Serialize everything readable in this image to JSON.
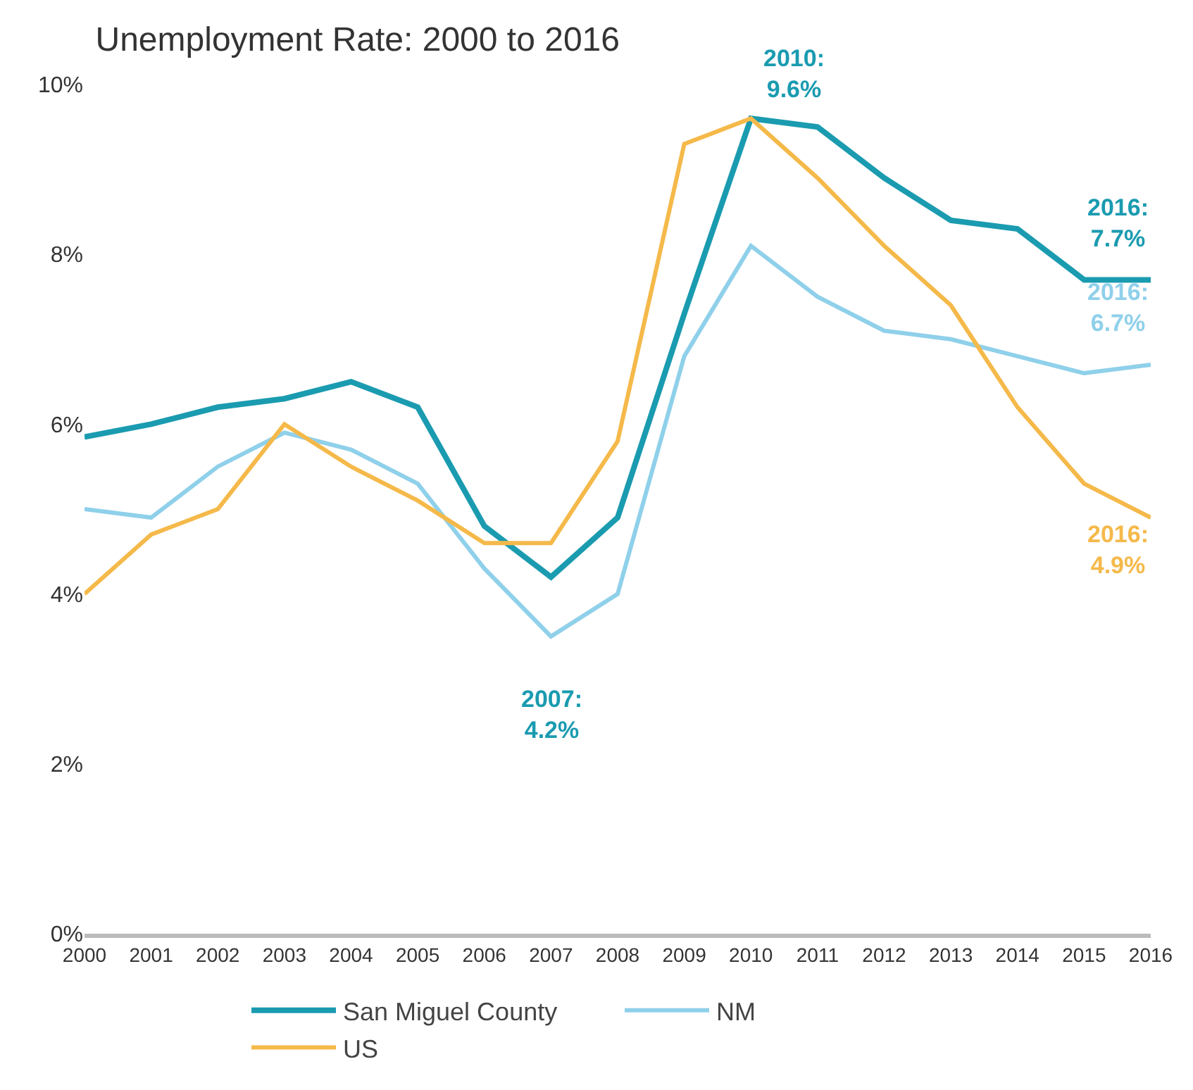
{
  "chart_data": {
    "type": "line",
    "title": "Unemployment Rate: 2000 to 2016",
    "x": [
      2000,
      2001,
      2002,
      2003,
      2004,
      2005,
      2006,
      2007,
      2008,
      2009,
      2010,
      2011,
      2012,
      2013,
      2014,
      2015,
      2016
    ],
    "series": [
      {
        "name": "San Miguel County",
        "color": "#1a9bb0",
        "values": [
          5.85,
          6.0,
          6.2,
          6.3,
          6.5,
          6.2,
          4.8,
          4.2,
          4.9,
          7.3,
          9.6,
          9.5,
          8.9,
          8.4,
          8.3,
          7.7,
          7.7
        ]
      },
      {
        "name": "NM",
        "color": "#8fd0ea",
        "values": [
          5.0,
          4.9,
          5.5,
          5.9,
          5.7,
          5.3,
          4.3,
          3.5,
          4.0,
          6.8,
          8.1,
          7.5,
          7.1,
          7.0,
          6.8,
          6.6,
          6.7
        ]
      },
      {
        "name": "US",
        "color": "#f5b94a",
        "values": [
          4.0,
          4.7,
          5.0,
          6.0,
          5.5,
          5.1,
          4.6,
          4.6,
          5.8,
          9.3,
          9.6,
          8.9,
          8.1,
          7.4,
          6.2,
          5.3,
          4.9
        ]
      }
    ],
    "xlim": [
      2000,
      2016
    ],
    "xticks": [
      2000,
      2001,
      2002,
      2003,
      2004,
      2005,
      2006,
      2007,
      2008,
      2009,
      2010,
      2011,
      2012,
      2013,
      2014,
      2015,
      2016
    ],
    "ylim": [
      0,
      10
    ],
    "yticks": [
      {
        "value": 0,
        "label": "0%"
      },
      {
        "value": 2,
        "label": "2%"
      },
      {
        "value": 4,
        "label": "4%"
      },
      {
        "value": 6,
        "label": "6%"
      },
      {
        "value": 8,
        "label": "8%"
      },
      {
        "value": 10,
        "label": "10%"
      }
    ],
    "annotations": [
      "2010:\n9.6%",
      "2016:\n7.7%",
      "2016:\n6.7%",
      "2016:\n4.9%",
      "2007:\n4.2%"
    ],
    "grid": false,
    "legend": "bottom",
    "marker": "none",
    "line_style": "solid"
  }
}
